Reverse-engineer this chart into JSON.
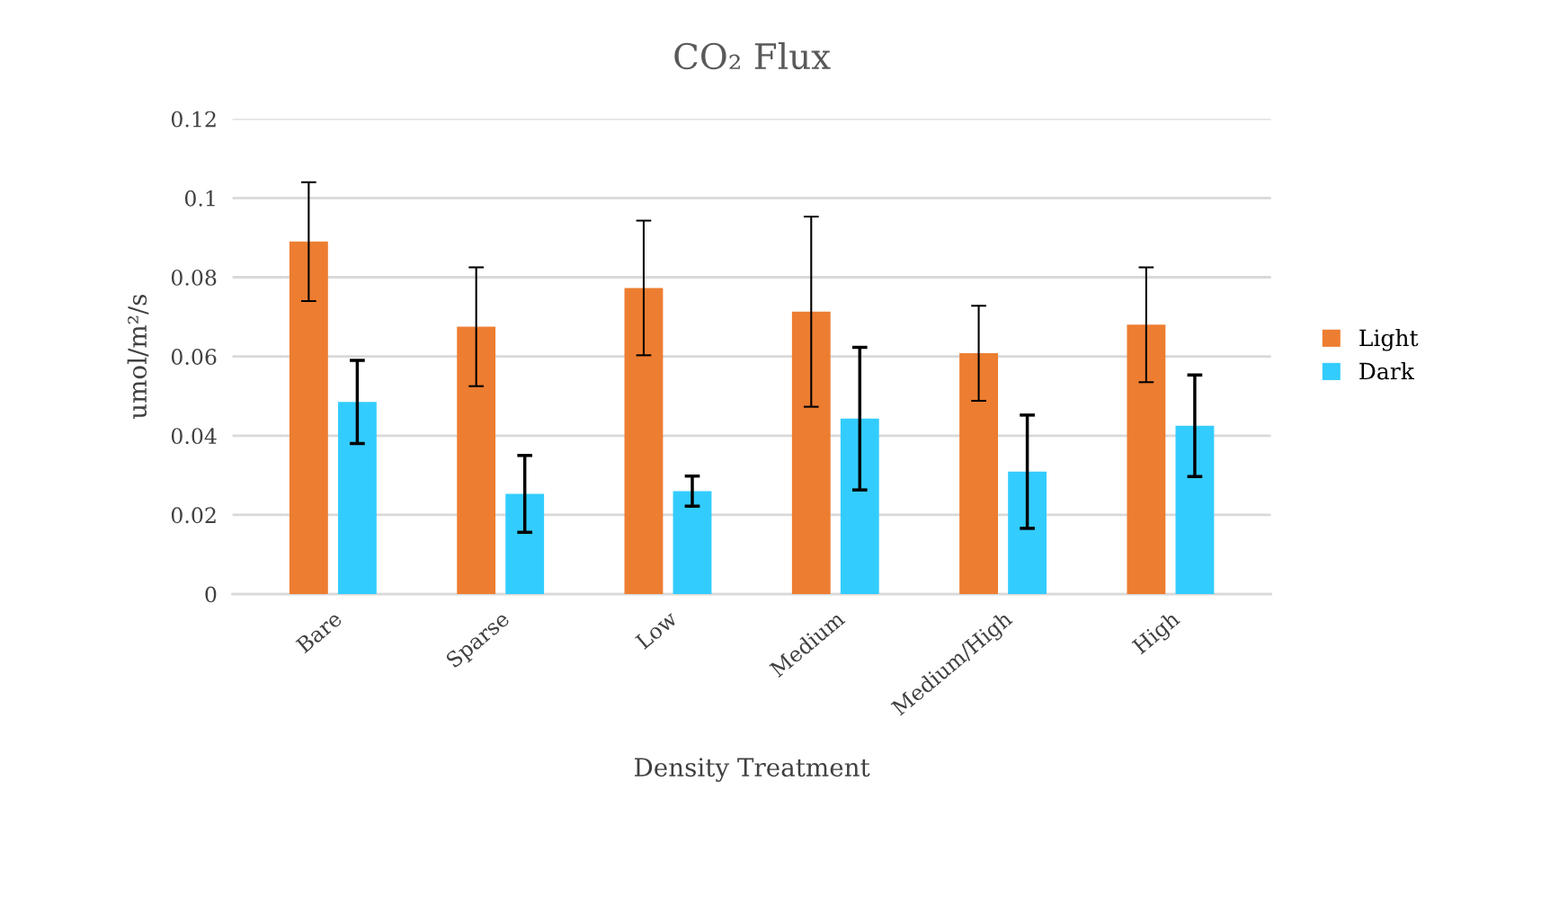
{
  "chart_data": {
    "type": "bar",
    "title": "CO₂ Flux",
    "xlabel": "Density Treatment",
    "ylabel": "umol/m²/s",
    "categories": [
      "Bare",
      "Sparse",
      "Low",
      "Medium",
      "Medium/High",
      "High"
    ],
    "series": [
      {
        "name": "Light",
        "color": "#ed7d31",
        "values": [
          0.089,
          0.0675,
          0.0773,
          0.0713,
          0.0608,
          0.068
        ],
        "errors": [
          0.015,
          0.015,
          0.017,
          0.024,
          0.012,
          0.0145
        ]
      },
      {
        "name": "Dark",
        "color": "#33ccff",
        "values": [
          0.0485,
          0.0253,
          0.026,
          0.0443,
          0.0309,
          0.0425
        ],
        "errors": [
          0.0105,
          0.0097,
          0.0038,
          0.018,
          0.0143,
          0.0128
        ]
      }
    ],
    "ylim": [
      0,
      0.12
    ],
    "yticks": [
      0,
      0.02,
      0.04,
      0.06,
      0.08,
      0.1,
      0.12
    ],
    "grid": "y",
    "legend": "right"
  }
}
